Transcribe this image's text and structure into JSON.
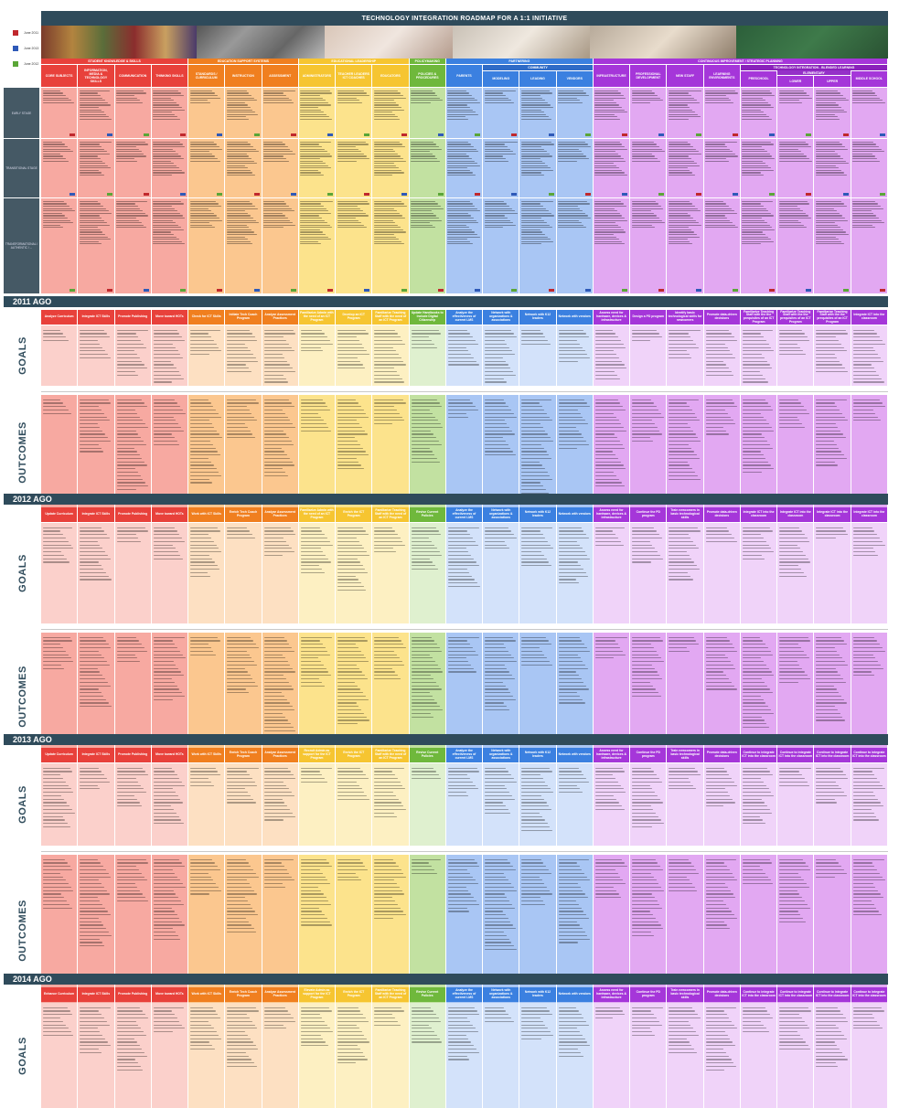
{
  "title": "TECHNOLOGY INTEGRATION ROADMAP FOR A 1:1 INITIATIVE",
  "legend": [
    {
      "label": "June 2011",
      "color": "#c0282d"
    },
    {
      "label": "June 2013",
      "color": "#2e59b8"
    },
    {
      "label": "June 2012",
      "color": "#5aa637"
    }
  ],
  "categories": [
    {
      "label": "STUDENT KNOWLEDGE & SKILLS",
      "color": "#e8413b"
    },
    {
      "label": "EDUCATION SUPPORT SYSTEMS",
      "color": "#f07f1f"
    },
    {
      "label": "EDUCATIONAL LEADERSHIP",
      "color": "#f6c531"
    },
    {
      "label": "POLICYMAKING",
      "color": "#6fb83c"
    },
    {
      "label": "PARTNERING",
      "color": "#3b80e0"
    },
    {
      "label": "CONTINUOUS IMPROVEMENT / STRATEGIC PLANNING",
      "color": "#a536d9"
    }
  ],
  "community_label": "COMMUNITY",
  "tech_integration_label": "TECHNOLOGY INTEGRATION - BLENDED LEARNING",
  "elementary_label": "ELEMENTARY",
  "columns": [
    "CORE SUBJECTS",
    "INFORMATION, MEDIA & TECHNOLOGY SKILLS",
    "COMMUNICATION",
    "THINKING SKILLS",
    "STANDARDS / CURRICULUM",
    "INSTRUCTION",
    "ASSESSMENT",
    "ADMINISTRATORS",
    "TEACHER LEADERS ICT COACHES",
    "EDUCATORS",
    "POLICIES & PROCEDURES",
    "PARENTS",
    "MODELING",
    "LEADING",
    "VENDORS",
    "INFRASTRUCTURE",
    "PROFESSIONAL DEVELOPMENT",
    "NEW STAFF",
    "LEARNING ENVIRONMENTS",
    "PRESCHOOL",
    "LOWER",
    "UPPER",
    "MIDDLE SCHOOL"
  ],
  "stages": [
    "EARLY STAGE",
    "TRANSITIONAL STAGE",
    "TRANSFORMATIONAL / AUTHENTIC / ..."
  ],
  "side_labels": {
    "goals": "GOALS",
    "outcomes": "OUTCOMES"
  },
  "sections": [
    {
      "year": "2011 AGO",
      "headers": [
        "Analyze Curriculum",
        "Integrate ICT Skills",
        "Promote Publishing",
        "Move toward HOTs",
        "Check for ICT Skills",
        "Initiate Tech Coach Program",
        "Analyze Assessment Practices",
        "Familiarize Admin with the need of an ICT Program",
        "Develop an ICT Program",
        "Familiarize Teaching Staff with the need of an ICT Program",
        "Update Handbooks to Include Digital Citizenship",
        "Analyze the effectiveness of current LMS",
        "Network with organizations & associations",
        "Network with K12 leaders",
        "Network with vendors",
        "Assess need for hardware, devices & infrastructure",
        "Design a PD program",
        "Identify basic technological skills for newcomers",
        "Promote data-driven decisions",
        "Familiarize Teaching Staff with the the prequisites of an ICT Program",
        "Familiarize Teaching Staff with the the prequisites of an ICT Program",
        "Familiarize Teaching Staff with the the prequisites of an ICT Program",
        "Integrate ICT into the classroom"
      ]
    },
    {
      "year": "2012 AGO",
      "headers": [
        "Update Curriculum",
        "Integrate ICT Skills",
        "Promote Publishing",
        "Move toward HOTs",
        "Work with ICT Skills",
        "Enrich Tech Coach Program",
        "Analyze Assessment Practices",
        "Familiarize Admin with the need of an ICT Program",
        "Enrich the ICT Program",
        "Familiarize Teaching Staff with the need of an ICT Program",
        "Revise Current Policies",
        "Analyze the effectiveness of current LMS",
        "Network with organizations & associations",
        "Network with K12 leaders",
        "Network with vendors",
        "Assess need for hardware, devices & infrastructure",
        "Continue the PD program",
        "Train newcomers in basic technological skills",
        "Promote data-driven decisions",
        "Integrate ICT into the classroom",
        "Integrate ICT into the classroom",
        "Integrate ICT into the classroom",
        "Integrate ICT into the classroom"
      ]
    },
    {
      "year": "2013 AGO",
      "headers": [
        "Update Curriculum",
        "Integrate ICT Skills",
        "Promote Publishing",
        "Move toward HOTs",
        "Work with ICT Skills",
        "Enrich Tech Coach Program",
        "Analyze Assessment Practices",
        "Recruit Admin as support for the ICT Program",
        "Enrich the ICT Program",
        "Familiarize Teaching Staff with the need of an ICT Program",
        "Revise Current Policies",
        "Analyze the effectiveness of current LMS",
        "Network with organizations & associations",
        "Network with K12 leaders",
        "Network with vendors",
        "Assess need for hardware, devices & infrastructure",
        "Continue the PD program",
        "Train newcomers in basic technological skills",
        "Promote data-driven decisions",
        "Continue to integrate ICT into the classroom",
        "Continue to integrate ICT into the classroom",
        "Continue to integrate ICT into the classroom",
        "Continue to integrate ICT into the classroom"
      ]
    },
    {
      "year": "2014 AGO",
      "headers": [
        "Enhance Curriculum",
        "Integrate ICT Skills",
        "Promote Publishing",
        "Move toward HOTs",
        "Work with ICT Skills",
        "Enrich Tech Coach Program",
        "Analyze Assessment Practices",
        "Elevate Admin as support for the ICT Program",
        "Enrich the ICT Program",
        "Familiarize Teaching Staff with the need of an ICT Program",
        "Revise Current Policies",
        "Analyze the effectiveness of current LMS",
        "Network with organizations & associations",
        "Network with K12 leaders",
        "Network with vendors",
        "Assess need for hardware, devices & infrastructure",
        "Continue the PD program",
        "Train newcomers in basic technological skills",
        "Promote data-driven decisions",
        "Continue to integrate ICT into the classroom",
        "Continue to integrate ICT into the classroom",
        "Continue to integrate ICT into the classroom",
        "Continue to integrate ICT into the classroom"
      ]
    }
  ]
}
